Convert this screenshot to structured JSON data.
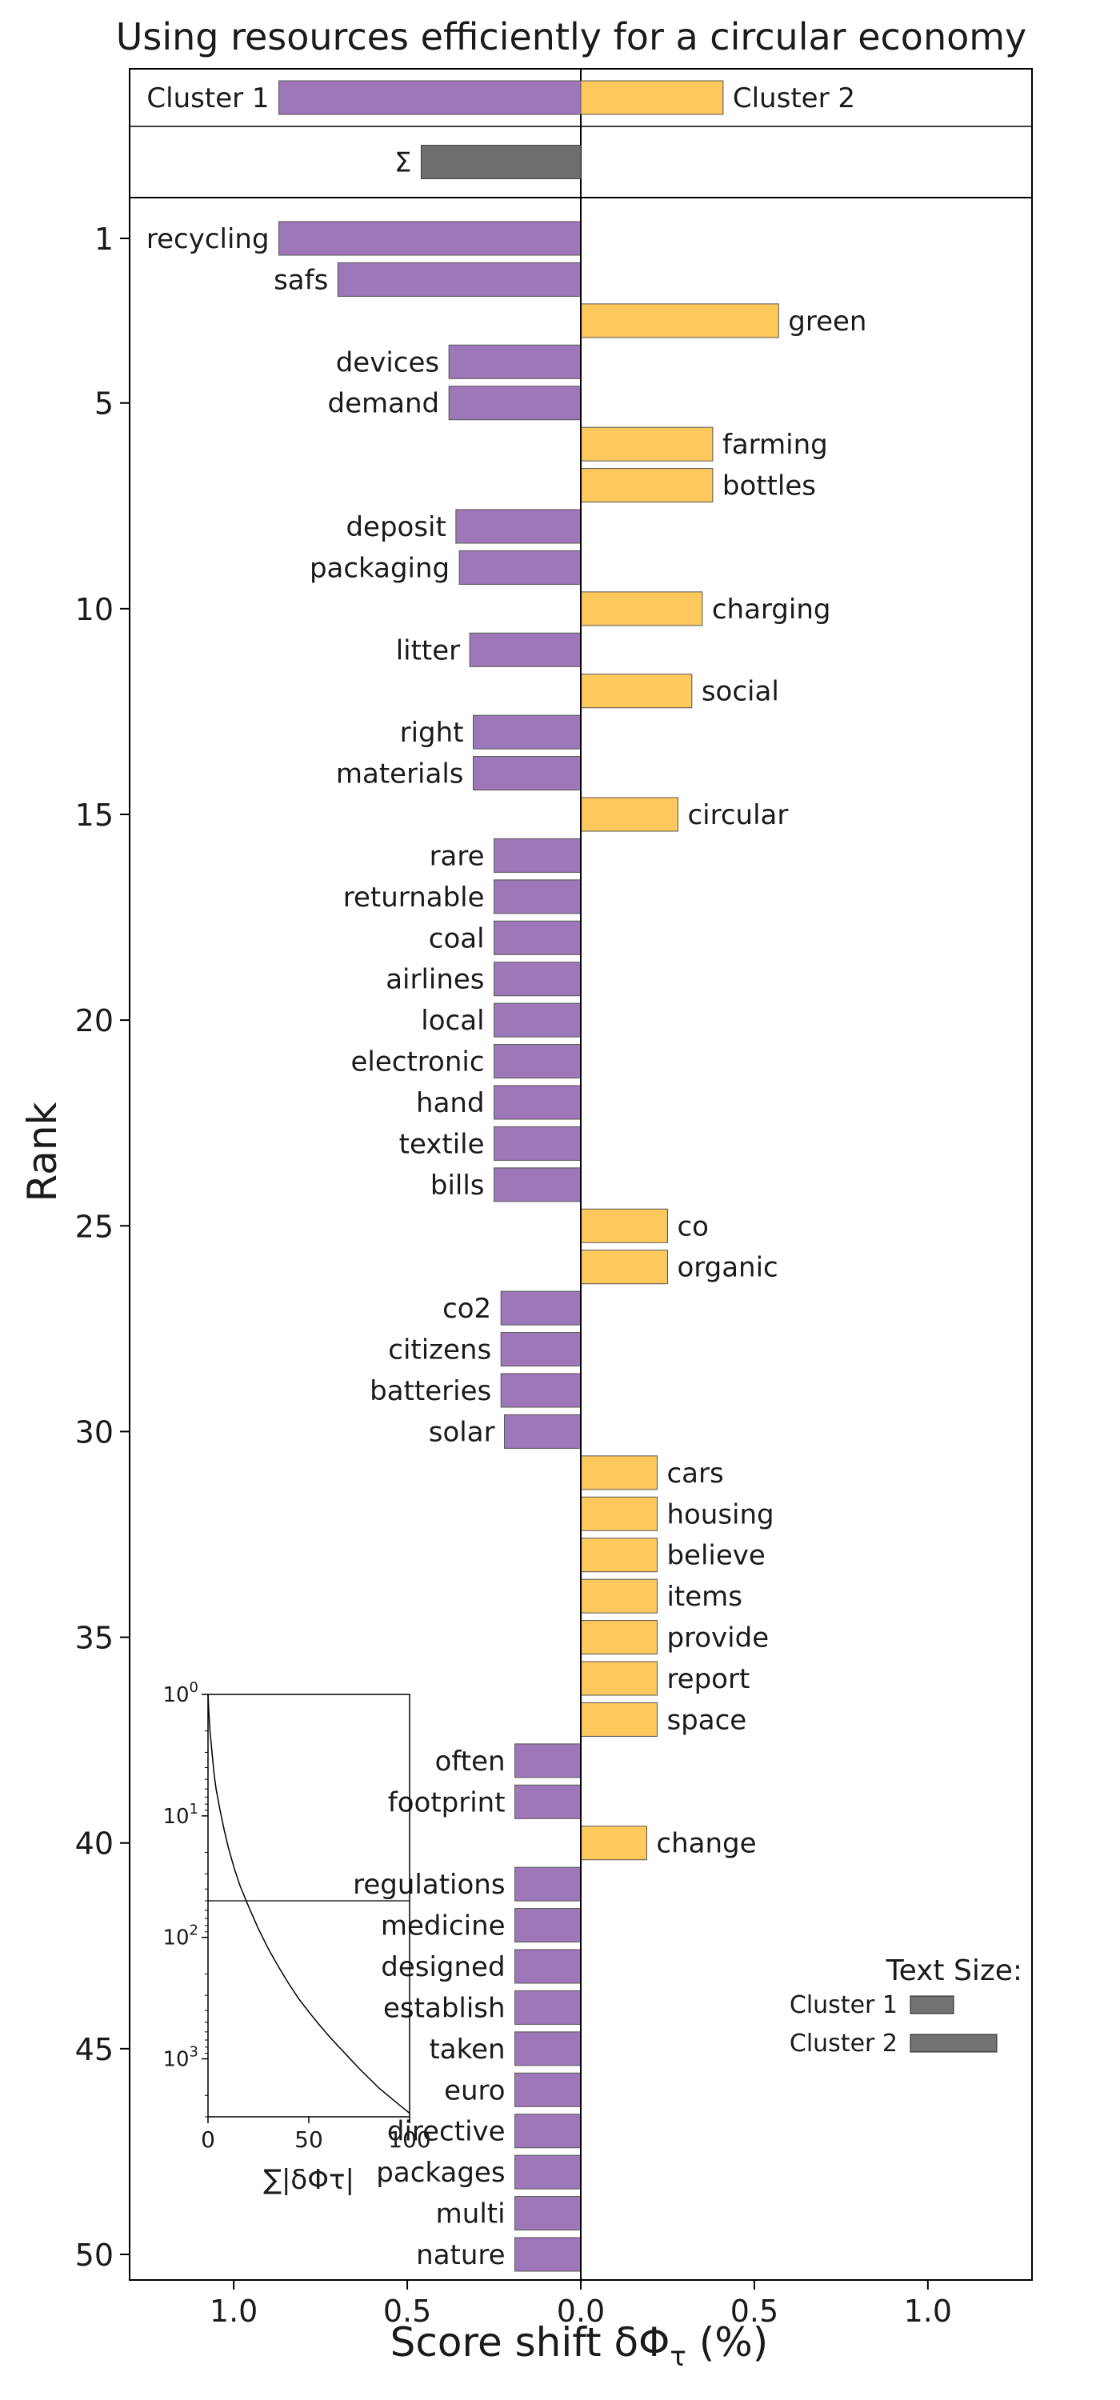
{
  "chart_data": {
    "type": "bar",
    "orientation": "horizontal",
    "title": "Using resources efficiently for a circular economy",
    "xlabel": "Score shift δΦ",
    "xlabel_sub": "τ",
    "xlabel_unit": " (%)",
    "ylabel": "Rank",
    "xlim": [
      -1.3,
      1.3
    ],
    "xticks": [
      -1.0,
      -0.5,
      0.0,
      0.5,
      1.0
    ],
    "xtick_labels": [
      "1.0",
      "0.5",
      "0.0",
      "0.5",
      "1.0"
    ],
    "yticks": [
      1,
      5,
      10,
      15,
      20,
      25,
      30,
      35,
      40,
      45,
      50
    ],
    "colors": {
      "cluster1": "#9e77b8",
      "cluster2": "#fdc95c",
      "sum": "#6e6e6e",
      "text_size": "#737373"
    },
    "header": {
      "cluster1_label": "Cluster 1",
      "cluster1_value": -0.87,
      "cluster2_label": "Cluster 2",
      "cluster2_value": 0.41,
      "sum_label": "Σ",
      "sum_value": -0.46
    },
    "series": [
      {
        "rank": 1,
        "word": "recycling",
        "value": -0.87,
        "cluster": 1
      },
      {
        "rank": 2,
        "word": "safs",
        "value": -0.7,
        "cluster": 1
      },
      {
        "rank": 3,
        "word": "green",
        "value": 0.57,
        "cluster": 2
      },
      {
        "rank": 4,
        "word": "devices",
        "value": -0.38,
        "cluster": 1
      },
      {
        "rank": 5,
        "word": "demand",
        "value": -0.38,
        "cluster": 1
      },
      {
        "rank": 6,
        "word": "farming",
        "value": 0.38,
        "cluster": 2
      },
      {
        "rank": 7,
        "word": "bottles",
        "value": 0.38,
        "cluster": 2
      },
      {
        "rank": 8,
        "word": "deposit",
        "value": -0.36,
        "cluster": 1
      },
      {
        "rank": 9,
        "word": "packaging",
        "value": -0.35,
        "cluster": 1
      },
      {
        "rank": 10,
        "word": "charging",
        "value": 0.35,
        "cluster": 2
      },
      {
        "rank": 11,
        "word": "litter",
        "value": -0.32,
        "cluster": 1
      },
      {
        "rank": 12,
        "word": "social",
        "value": 0.32,
        "cluster": 2
      },
      {
        "rank": 13,
        "word": "right",
        "value": -0.31,
        "cluster": 1
      },
      {
        "rank": 14,
        "word": "materials",
        "value": -0.31,
        "cluster": 1
      },
      {
        "rank": 15,
        "word": "circular",
        "value": 0.28,
        "cluster": 2
      },
      {
        "rank": 16,
        "word": "rare",
        "value": -0.25,
        "cluster": 1
      },
      {
        "rank": 17,
        "word": "returnable",
        "value": -0.25,
        "cluster": 1
      },
      {
        "rank": 18,
        "word": "coal",
        "value": -0.25,
        "cluster": 1
      },
      {
        "rank": 19,
        "word": "airlines",
        "value": -0.25,
        "cluster": 1
      },
      {
        "rank": 20,
        "word": "local",
        "value": -0.25,
        "cluster": 1
      },
      {
        "rank": 21,
        "word": "electronic",
        "value": -0.25,
        "cluster": 1
      },
      {
        "rank": 22,
        "word": "hand",
        "value": -0.25,
        "cluster": 1
      },
      {
        "rank": 23,
        "word": "textile",
        "value": -0.25,
        "cluster": 1
      },
      {
        "rank": 24,
        "word": "bills",
        "value": -0.25,
        "cluster": 1
      },
      {
        "rank": 25,
        "word": "co",
        "value": 0.25,
        "cluster": 2
      },
      {
        "rank": 26,
        "word": "organic",
        "value": 0.25,
        "cluster": 2
      },
      {
        "rank": 27,
        "word": "co2",
        "value": -0.23,
        "cluster": 1
      },
      {
        "rank": 28,
        "word": "citizens",
        "value": -0.23,
        "cluster": 1
      },
      {
        "rank": 29,
        "word": "batteries",
        "value": -0.23,
        "cluster": 1
      },
      {
        "rank": 30,
        "word": "solar",
        "value": -0.22,
        "cluster": 1
      },
      {
        "rank": 31,
        "word": "cars",
        "value": 0.22,
        "cluster": 2
      },
      {
        "rank": 32,
        "word": "housing",
        "value": 0.22,
        "cluster": 2
      },
      {
        "rank": 33,
        "word": "believe",
        "value": 0.22,
        "cluster": 2
      },
      {
        "rank": 34,
        "word": "items",
        "value": 0.22,
        "cluster": 2
      },
      {
        "rank": 35,
        "word": "provide",
        "value": 0.22,
        "cluster": 2
      },
      {
        "rank": 36,
        "word": "report",
        "value": 0.22,
        "cluster": 2
      },
      {
        "rank": 37,
        "word": "space",
        "value": 0.22,
        "cluster": 2
      },
      {
        "rank": 38,
        "word": "often",
        "value": -0.19,
        "cluster": 1
      },
      {
        "rank": 39,
        "word": "footprint",
        "value": -0.19,
        "cluster": 1
      },
      {
        "rank": 40,
        "word": "change",
        "value": 0.19,
        "cluster": 2
      },
      {
        "rank": 41,
        "word": "regulations",
        "value": -0.19,
        "cluster": 1
      },
      {
        "rank": 42,
        "word": "medicine",
        "value": -0.19,
        "cluster": 1
      },
      {
        "rank": 43,
        "word": "designed",
        "value": -0.19,
        "cluster": 1
      },
      {
        "rank": 44,
        "word": "establish",
        "value": -0.19,
        "cluster": 1
      },
      {
        "rank": 45,
        "word": "taken",
        "value": -0.19,
        "cluster": 1
      },
      {
        "rank": 46,
        "word": "euro",
        "value": -0.19,
        "cluster": 1
      },
      {
        "rank": 47,
        "word": "directive",
        "value": -0.19,
        "cluster": 1
      },
      {
        "rank": 48,
        "word": "packages",
        "value": -0.19,
        "cluster": 1
      },
      {
        "rank": 49,
        "word": "multi",
        "value": -0.19,
        "cluster": 1
      },
      {
        "rank": 50,
        "word": "nature",
        "value": -0.19,
        "cluster": 1
      }
    ],
    "inset": {
      "xlabel": "∑|δΦτ|",
      "xlim": [
        0,
        100
      ],
      "xticks": [
        0,
        50,
        100
      ],
      "xtick_labels": [
        "0",
        "50",
        "100"
      ],
      "yscale": "log",
      "yticks": [
        1,
        10,
        100,
        1000
      ],
      "ytick_labels": [
        {
          "base": "10",
          "exp": "0"
        },
        {
          "base": "10",
          "exp": "1"
        },
        {
          "base": "10",
          "exp": "2"
        },
        {
          "base": "10",
          "exp": "3"
        }
      ],
      "ylim": [
        1,
        3000
      ],
      "reference_rank": 50,
      "curve": [
        [
          0,
          1
        ],
        [
          0.5,
          1.5
        ],
        [
          1,
          2
        ],
        [
          2,
          3
        ],
        [
          3,
          4.5
        ],
        [
          4,
          6
        ],
        [
          6,
          9
        ],
        [
          8,
          13
        ],
        [
          10,
          18
        ],
        [
          13,
          27
        ],
        [
          16,
          38
        ],
        [
          20,
          55
        ],
        [
          25,
          85
        ],
        [
          30,
          125
        ],
        [
          35,
          175
        ],
        [
          40,
          240
        ],
        [
          45,
          320
        ],
        [
          50,
          410
        ],
        [
          55,
          520
        ],
        [
          60,
          650
        ],
        [
          65,
          800
        ],
        [
          70,
          980
        ],
        [
          75,
          1200
        ],
        [
          80,
          1450
        ],
        [
          85,
          1750
        ],
        [
          90,
          2050
        ],
        [
          95,
          2400
        ],
        [
          100,
          2800
        ]
      ]
    },
    "legend": {
      "title": "Text Size:",
      "items": [
        {
          "label": "Cluster 1",
          "size": 0.5
        },
        {
          "label": "Cluster 2",
          "size": 1.0
        }
      ]
    }
  }
}
